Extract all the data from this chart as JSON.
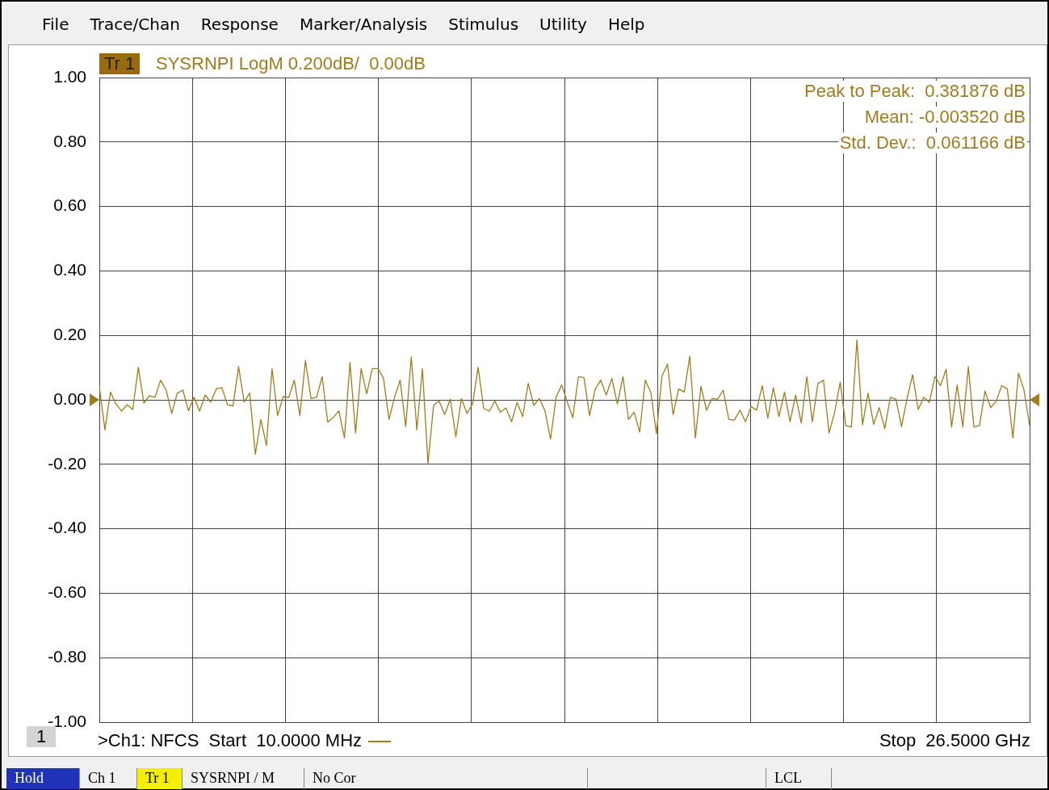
{
  "chart_data": {
    "type": "line",
    "title": "SYSRNPI LogM 0.200dB/  0.00dB",
    "annotations": [
      "File",
      "Trace/Chan",
      "Response",
      "Marker/Analysis",
      "Stimulus",
      "Utility",
      "Help",
      "Tr 1",
      "Peak to Peak:  0.381876 dB",
      "Mean: -0.003520 dB",
      "Std. Dev.:  0.061166 dB",
      "1",
      ">Ch1: NFCS  Start  10.0000 MHz",
      "Stop  26.5000 GHz",
      "Hold",
      "Ch 1",
      "Tr 1",
      "SYSRNPI / M",
      "No Cor",
      "LCL"
    ],
    "series": [
      {
        "color": "#a07c1c",
        "values": [
          0.042,
          -0.093,
          0.024,
          -0.013,
          -0.035,
          -0.015,
          -0.03,
          0.101,
          -0.01,
          0.013,
          0.008,
          0.061,
          0.03,
          -0.042,
          0.021,
          0.03,
          -0.034,
          0.008,
          -0.035,
          0.015,
          -0.007,
          0.034,
          0.038,
          -0.015,
          -0.019,
          0.103,
          -0.007,
          0.021,
          -0.169,
          -0.061,
          -0.142,
          0.097,
          -0.049,
          0.01,
          0.007,
          0.061,
          -0.049,
          0.122,
          0.004,
          0.008,
          0.072,
          -0.069,
          -0.055,
          -0.034,
          -0.118,
          0.116,
          -0.103,
          0.097,
          0.019,
          0.097,
          0.097,
          0.068,
          -0.061,
          0.008,
          0.061,
          -0.083,
          0.133,
          -0.093,
          0.097,
          -0.198,
          -0.017,
          -0.004,
          -0.046,
          0.002,
          -0.114,
          0.004,
          -0.042,
          -0.013,
          0.101,
          -0.027,
          -0.035,
          -0.004,
          -0.038,
          -0.025,
          -0.068,
          -0.008,
          -0.052,
          0.051,
          -0.017,
          0.004,
          -0.034,
          -0.122,
          0.008,
          0.046,
          -0.007,
          -0.055,
          0.072,
          0.069,
          -0.049,
          0.032,
          0.061,
          0.015,
          0.066,
          -0.013,
          0.072,
          -0.061,
          -0.038,
          -0.1,
          0.061,
          0.024,
          -0.105,
          0.074,
          0.111,
          -0.046,
          0.034,
          0.024,
          0.135,
          -0.118,
          0.042,
          -0.032,
          0.004,
          0.002,
          0.03,
          -0.061,
          -0.063,
          -0.032,
          -0.068,
          -0.021,
          -0.032,
          0.044,
          -0.057,
          0.038,
          -0.052,
          0.024,
          -0.068,
          0.015,
          -0.072,
          0.072,
          -0.068,
          0.051,
          0.061,
          -0.103,
          -0.038,
          0.055,
          -0.08,
          -0.084,
          0.186,
          -0.078,
          0.021,
          -0.076,
          -0.024,
          -0.089,
          0.008,
          0.002,
          -0.083,
          0.004,
          0.078,
          -0.03,
          0.008,
          -0.008,
          0.072,
          0.044,
          0.095,
          -0.084,
          0.046,
          -0.084,
          0.103,
          -0.084,
          -0.08,
          0.027,
          -0.024,
          -0.004,
          0.044,
          0.034,
          -0.118,
          0.083,
          0.03,
          -0.08
        ]
      }
    ],
    "categories": [
      null,
      null,
      null,
      null,
      null,
      null,
      null,
      null,
      null,
      null,
      null,
      null,
      null,
      null,
      null,
      null,
      null,
      null,
      null,
      null,
      null,
      null,
      null,
      null,
      null,
      null,
      null,
      null,
      null,
      null,
      null,
      null,
      null,
      null,
      null,
      null,
      null,
      null,
      null,
      null,
      null,
      null,
      null,
      null,
      null,
      null,
      null,
      null,
      null,
      null,
      null,
      null,
      null,
      null,
      null,
      null,
      null,
      null,
      null,
      null,
      null,
      null,
      null,
      null,
      null,
      null,
      null,
      null,
      null,
      null,
      null,
      null,
      null,
      null,
      null,
      null,
      null,
      null,
      null,
      null,
      null,
      null,
      null,
      null,
      null,
      null,
      null,
      null,
      null,
      null,
      null,
      null,
      null,
      null,
      null,
      null,
      null,
      null,
      null,
      null,
      null,
      null,
      null,
      null,
      null,
      null,
      null,
      null,
      null,
      null,
      null,
      null,
      null,
      null,
      null,
      null,
      null,
      null,
      null,
      null,
      null,
      null,
      null,
      null,
      null,
      null,
      null,
      null,
      null,
      null,
      null,
      null,
      null,
      null,
      null,
      null,
      null,
      null,
      null,
      null,
      null,
      null,
      null,
      null,
      null,
      null,
      null,
      null,
      null,
      null,
      null,
      null,
      null,
      null,
      null,
      null,
      null,
      null,
      null,
      null,
      null,
      null,
      null,
      null,
      null,
      null,
      null,
      null
    ],
    "ylim": [
      -1,
      1
    ],
    "yticks": [
      {
        "value": -1,
        "label": "-1.00"
      },
      {
        "value": -0.8,
        "label": "-0.80"
      },
      {
        "value": -0.6,
        "label": "-0.60"
      },
      {
        "value": -0.4,
        "label": "-0.40"
      },
      {
        "value": -0.2,
        "label": "-0.20"
      },
      {
        "value": 0,
        "label": "0.00"
      },
      {
        "value": 0.2,
        "label": "0.20"
      },
      {
        "value": 0.4,
        "label": "0.40"
      },
      {
        "value": 0.6,
        "label": "0.60"
      },
      {
        "value": 0.8,
        "label": "0.80"
      },
      {
        "value": 1,
        "label": "1.00"
      }
    ],
    "grid": true,
    "legend": false,
    "tick_labels": "y",
    "marker": "none",
    "line_style": "solid"
  }
}
